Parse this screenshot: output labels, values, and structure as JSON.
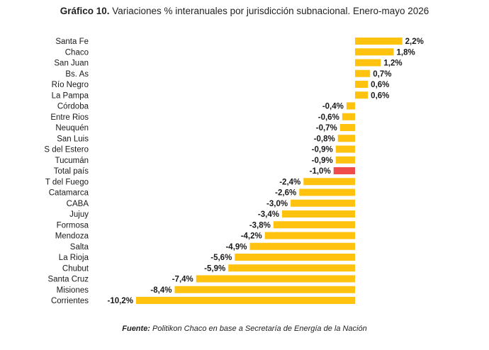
{
  "title": {
    "bold": "Gráfico 10.",
    "text": " Variaciones % interanuales por jurisdicción subnacional. Enero-mayo 2026"
  },
  "source": {
    "label": "Fuente:",
    "text": " Politikon Chaco en base a Secretaría de Energía de la Nación"
  },
  "colors": {
    "bar": "#FFC20E",
    "highlight": "#EF4B4B"
  },
  "chart_data": {
    "type": "bar",
    "orientation": "horizontal",
    "highlight_category": "Total país",
    "categories": [
      "Santa Fe",
      "Chaco",
      "San Juan",
      "Bs. As",
      "Río Negro",
      "La Pampa",
      "Córdoba",
      "Entre Rios",
      "Neuquén",
      "San Luis",
      "S del Estero",
      "Tucumán",
      "Total país",
      "T del Fuego",
      "Catamarca",
      "CABA",
      "Jujuy",
      "Formosa",
      "Mendoza",
      "Salta",
      "La Rioja",
      "Chubut",
      "Santa Cruz",
      "Misiones",
      "Corrientes"
    ],
    "values": [
      2.2,
      1.8,
      1.2,
      0.7,
      0.6,
      0.6,
      -0.4,
      -0.6,
      -0.7,
      -0.8,
      -0.9,
      -0.9,
      -1.0,
      -2.4,
      -2.6,
      -3.0,
      -3.4,
      -3.8,
      -4.2,
      -4.9,
      -5.6,
      -5.9,
      -7.4,
      -8.4,
      -10.2
    ],
    "value_labels": [
      "2,2%",
      "1,8%",
      "1,2%",
      "0,7%",
      "0,6%",
      "0,6%",
      "-0,4%",
      "-0,6%",
      "-0,7%",
      "-0,8%",
      "-0,9%",
      "-0,9%",
      "-1,0%",
      "-2,4%",
      "-2,6%",
      "-3,0%",
      "-3,4%",
      "-3,8%",
      "-4,2%",
      "-4,9%",
      "-5,6%",
      "-5,9%",
      "-7,4%",
      "-8,4%",
      "-10,2%"
    ],
    "xlim": [
      -10.2,
      2.2
    ],
    "grid": false,
    "legend": "none",
    "xlabel": "",
    "ylabel": ""
  }
}
